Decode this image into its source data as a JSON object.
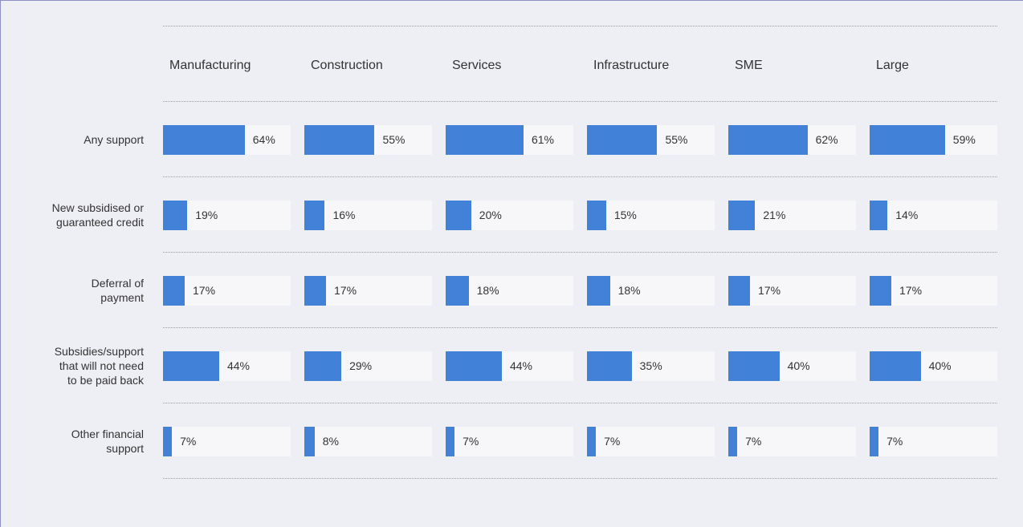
{
  "chart_data": {
    "type": "bar",
    "categories": [
      "Any support",
      "New subsidised or guaranteed credit",
      "Deferral of payment",
      "Subsidies/support that will not need to be paid back",
      "Other financial support"
    ],
    "series": [
      {
        "name": "Manufacturing",
        "color": "#4182d8",
        "values": [
          64,
          19,
          17,
          44,
          7
        ],
        "value_labels": [
          "64%",
          "19%",
          "17%",
          "44%",
          "7%"
        ]
      },
      {
        "name": "Construction",
        "color": "#4182d8",
        "values": [
          55,
          16,
          17,
          29,
          8
        ],
        "value_labels": [
          "55%",
          "16%",
          "17%",
          "29%",
          "8%"
        ]
      },
      {
        "name": "Services",
        "color": "#4182d8",
        "values": [
          61,
          20,
          18,
          44,
          7
        ],
        "value_labels": [
          "61%",
          "20%",
          "18%",
          "44%",
          "7%"
        ]
      },
      {
        "name": "Infrastructure",
        "color": "#4182d8",
        "values": [
          55,
          15,
          18,
          35,
          7
        ],
        "value_labels": [
          "55%",
          "15%",
          "18%",
          "35%",
          "7%"
        ]
      },
      {
        "name": "SME",
        "color": "#4182d8",
        "values": [
          62,
          21,
          17,
          40,
          7
        ],
        "value_labels": [
          "62%",
          "21%",
          "17%",
          "40%",
          "7%"
        ]
      },
      {
        "name": "Large",
        "color": "#4182d8",
        "values": [
          59,
          14,
          17,
          40,
          7
        ],
        "value_labels": [
          "59%",
          "14%",
          "17%",
          "40%",
          "7%"
        ]
      }
    ],
    "xlim": [
      0,
      100
    ]
  }
}
